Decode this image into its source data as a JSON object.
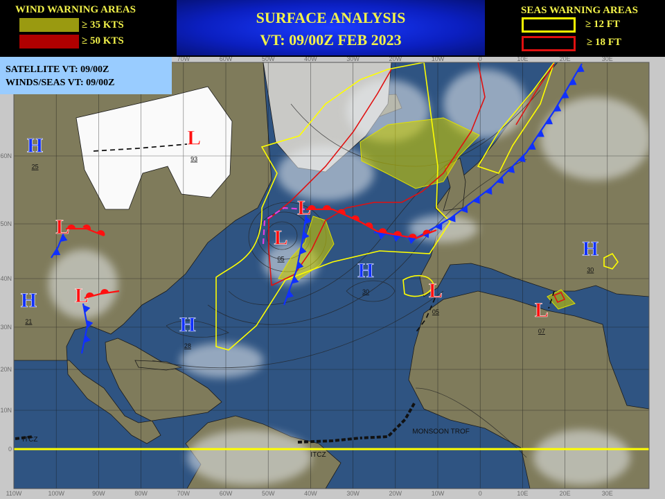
{
  "header": {
    "title": "SURFACE ANALYSIS",
    "valid_time": "VT: 09/00Z FEB 2023",
    "wind_legend": {
      "title": "WIND WARNING AREAS",
      "items": [
        {
          "label": "≥ 35 KTS",
          "color": "#9a9a10"
        },
        {
          "label": "≥ 50 KTS",
          "color": "#b00000"
        }
      ]
    },
    "seas_legend": {
      "title": "SEAS WARNING AREAS",
      "items": [
        {
          "label": "≥ 12 FT",
          "color": "#ffff00"
        },
        {
          "label": "≥ 18 FT",
          "color": "#e01010"
        }
      ]
    }
  },
  "info": {
    "satellite": "SATELLITE  VT: 09/00Z",
    "winds_seas": "WINDS/SEAS VT: 09/00Z"
  },
  "axes": {
    "top_lon_labels": [
      "70W",
      "60W",
      "50W",
      "40W",
      "30W",
      "20W",
      "10W",
      "0",
      "10E",
      "20E",
      "30E"
    ],
    "top_lon_values": [
      -70,
      -60,
      -50,
      -40,
      -30,
      -20,
      -10,
      0,
      10,
      20,
      30
    ],
    "bottom_lon_labels": [
      "110W",
      "100W",
      "90W",
      "80W",
      "70W",
      "60W",
      "50W",
      "40W",
      "30W",
      "20W",
      "10W",
      "0",
      "10E",
      "20E",
      "30E"
    ],
    "bottom_lon_values": [
      -110,
      -100,
      -90,
      -80,
      -70,
      -60,
      -50,
      -40,
      -30,
      -20,
      -10,
      0,
      10,
      20,
      30
    ],
    "lat_labels": [
      "60N",
      "50N",
      "40N",
      "30N",
      "20N",
      "10N",
      "0"
    ],
    "lat_values": [
      60,
      50,
      40,
      30,
      20,
      10,
      0
    ]
  },
  "colors": {
    "ocean": "#2f5482",
    "land": "#7f7b5b",
    "high": "#1030ff",
    "low": "#ff1010",
    "cold_front": "#1030ff",
    "warm_front": "#ff1010",
    "occluded_front": "#e040e0",
    "equator": "#ffff00"
  },
  "pressure_systems": [
    {
      "type": "H",
      "label": "25",
      "lon": -105,
      "lat": 61
    },
    {
      "type": "L",
      "label": "93",
      "lon": -67.5,
      "lat": 62
    },
    {
      "type": "L",
      "label": "",
      "lon": -98.5,
      "lat": 49
    },
    {
      "type": "H",
      "label": "21",
      "lon": -106.5,
      "lat": 35
    },
    {
      "type": "L",
      "label": "",
      "lon": -94,
      "lat": 36
    },
    {
      "type": "H",
      "label": "28",
      "lon": -69,
      "lat": 30
    },
    {
      "type": "L",
      "label": "05",
      "lon": -47,
      "lat": 47
    },
    {
      "type": "L",
      "label": "",
      "lon": -41.5,
      "lat": 52
    },
    {
      "type": "H",
      "label": "30",
      "lon": -27,
      "lat": 41
    },
    {
      "type": "L",
      "label": "05",
      "lon": -10.5,
      "lat": 37
    },
    {
      "type": "H",
      "label": "30",
      "lon": 26,
      "lat": 45
    },
    {
      "type": "L",
      "label": "07",
      "lon": 14.5,
      "lat": 33
    }
  ],
  "feature_labels": [
    {
      "text": "ITCZ",
      "lon": -108,
      "lat": 2
    },
    {
      "text": "ITCZ",
      "lon": -40,
      "lat": -2
    },
    {
      "text": "MONSOON TROF",
      "lon": -16,
      "lat": 4
    }
  ]
}
